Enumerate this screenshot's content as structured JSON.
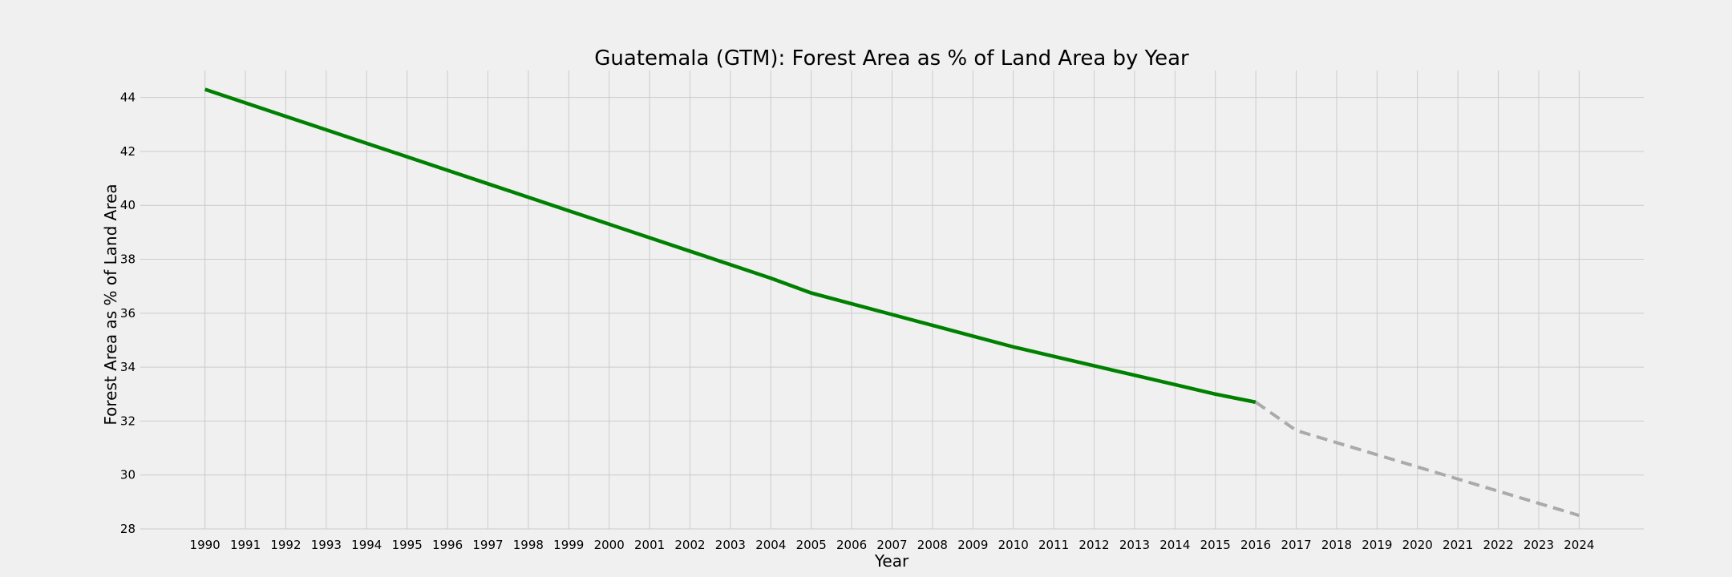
{
  "chart_data": {
    "type": "line",
    "title": "Guatemala (GTM): Forest Area as % of Land Area by Year",
    "xlabel": "Year",
    "ylabel": "Forest Area as % of Land Area",
    "x_ticks": [
      1990,
      1991,
      1992,
      1993,
      1994,
      1995,
      1996,
      1997,
      1998,
      1999,
      2000,
      2001,
      2002,
      2003,
      2004,
      2005,
      2006,
      2007,
      2008,
      2009,
      2010,
      2011,
      2012,
      2013,
      2014,
      2015,
      2016,
      2017,
      2018,
      2019,
      2020,
      2021,
      2022,
      2023,
      2024
    ],
    "xlim": [
      1988.4,
      2025.6
    ],
    "ylim": [
      28,
      45
    ],
    "y_ticks": [
      28,
      30,
      32,
      34,
      36,
      38,
      40,
      42,
      44
    ],
    "grid": true,
    "legend": "none",
    "series": [
      {
        "style": "solid",
        "color": "#008000",
        "x": [
          1990,
          1991,
          1992,
          1993,
          1994,
          1995,
          1996,
          1997,
          1998,
          1999,
          2000,
          2001,
          2002,
          2003,
          2004,
          2005,
          2006,
          2007,
          2008,
          2009,
          2010,
          2011,
          2012,
          2013,
          2014,
          2015,
          2016
        ],
        "values": [
          44.3,
          43.8,
          43.3,
          42.8,
          42.3,
          41.8,
          41.3,
          40.8,
          40.3,
          39.8,
          39.3,
          38.8,
          38.3,
          37.8,
          37.3,
          36.75,
          36.35,
          35.95,
          35.55,
          35.15,
          34.75,
          34.4,
          34.05,
          33.7,
          33.35,
          33.0,
          32.7
        ]
      },
      {
        "style": "dashed",
        "color": "#aaaaaa",
        "x": [
          2016,
          2017,
          2018,
          2019,
          2020,
          2021,
          2022,
          2023,
          2024
        ],
        "values": [
          32.7,
          31.65,
          31.2,
          30.75,
          30.3,
          29.85,
          29.4,
          28.95,
          28.5
        ]
      }
    ]
  }
}
